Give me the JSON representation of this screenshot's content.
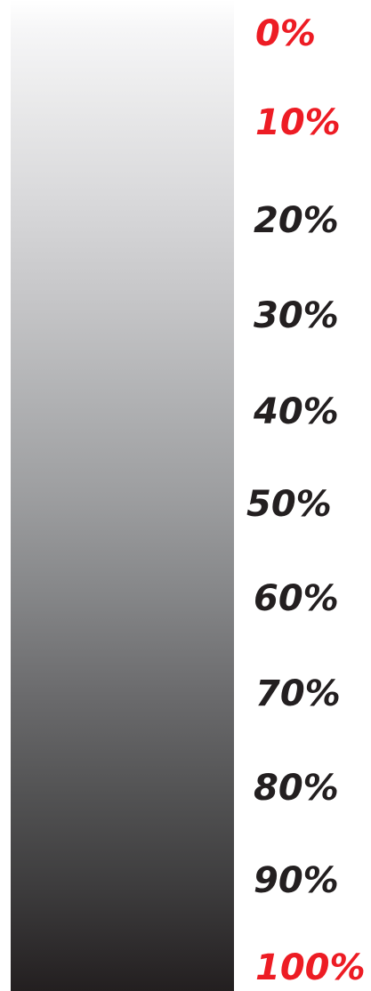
{
  "colors": {
    "highlight": "#ed1c24",
    "normal": "#231f20",
    "gradient_start": "#ffffff",
    "gradient_end": "#231f20"
  },
  "labels": [
    {
      "text": "0%",
      "highlight": true
    },
    {
      "text": "10%",
      "highlight": true
    },
    {
      "text": "20%",
      "highlight": false
    },
    {
      "text": "30%",
      "highlight": false
    },
    {
      "text": "40%",
      "highlight": false
    },
    {
      "text": "50%",
      "highlight": false
    },
    {
      "text": "60%",
      "highlight": false
    },
    {
      "text": "70%",
      "highlight": false
    },
    {
      "text": "80%",
      "highlight": false
    },
    {
      "text": "90%",
      "highlight": false
    },
    {
      "text": "100%",
      "highlight": true
    }
  ]
}
